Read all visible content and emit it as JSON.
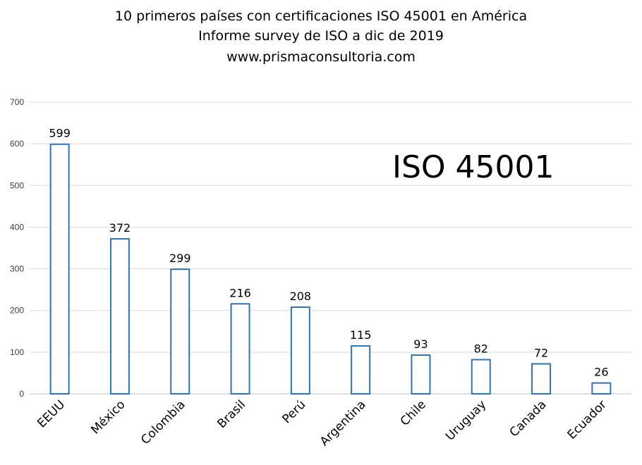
{
  "chart_data": {
    "type": "bar",
    "title_lines": [
      "10 primeros países con certificaciones ISO 45001 en América",
      "Informe survey de ISO a dic de 2019",
      "www.prismaconsultoria.com"
    ],
    "annotation": "ISO 45001",
    "categories": [
      "EEUU",
      "México",
      "Colombia",
      "Brasil",
      "Perú",
      "Argentina",
      "Chile",
      "Uruguay",
      "Canada",
      "Ecuador"
    ],
    "values": [
      599,
      372,
      299,
      216,
      208,
      115,
      93,
      82,
      72,
      26
    ],
    "ylim": [
      0,
      700
    ],
    "yticks": [
      0,
      100,
      200,
      300,
      400,
      500,
      600,
      700
    ],
    "grid": true,
    "legend": false,
    "bar_outline_color": "#2e75b6",
    "bar_fill_color": "#ffffff"
  }
}
